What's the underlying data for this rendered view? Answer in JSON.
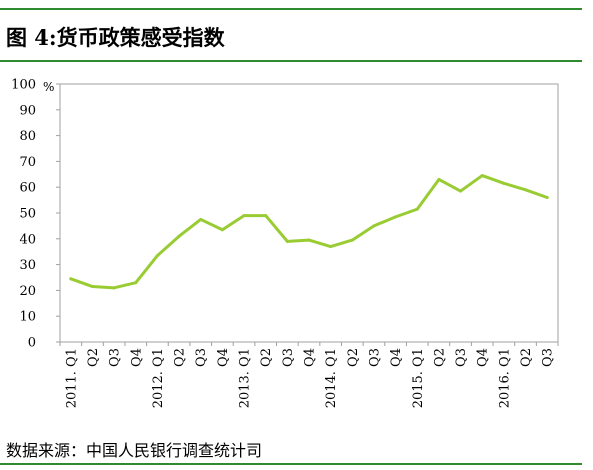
{
  "figure": {
    "title": "图 4:货币政策感受指数",
    "source": "数据来源：中国人民银行调查统计司"
  },
  "colors": {
    "line": "#99cc33",
    "rule": "#2e8b2e"
  },
  "chart_data": {
    "type": "line",
    "title": "图 4:货币政策感受指数",
    "ylabel": "",
    "xlabel": "",
    "y_unit": "%",
    "ylim": [
      0,
      100
    ],
    "yticks": [
      0,
      10,
      20,
      30,
      40,
      50,
      60,
      70,
      80,
      90,
      100
    ],
    "grid": false,
    "categories": [
      "2011. Q1",
      "Q2",
      "Q3",
      "Q4",
      "2012. Q1",
      "Q2",
      "Q3",
      "Q4",
      "2013. Q1",
      "Q2",
      "Q3",
      "Q4",
      "2014. Q1",
      "Q2",
      "Q3",
      "Q4",
      "2015. Q1",
      "Q2",
      "Q3",
      "Q4",
      "2016. Q1",
      "Q2",
      "Q3"
    ],
    "series": [
      {
        "values": [
          24.5,
          21.5,
          21.0,
          23.0,
          33.5,
          41.0,
          47.5,
          43.5,
          49.0,
          49.0,
          39.0,
          39.5,
          37.0,
          39.5,
          45.0,
          48.5,
          51.5,
          63.0,
          58.5,
          64.5,
          61.5,
          59.0,
          56.0
        ]
      }
    ]
  }
}
